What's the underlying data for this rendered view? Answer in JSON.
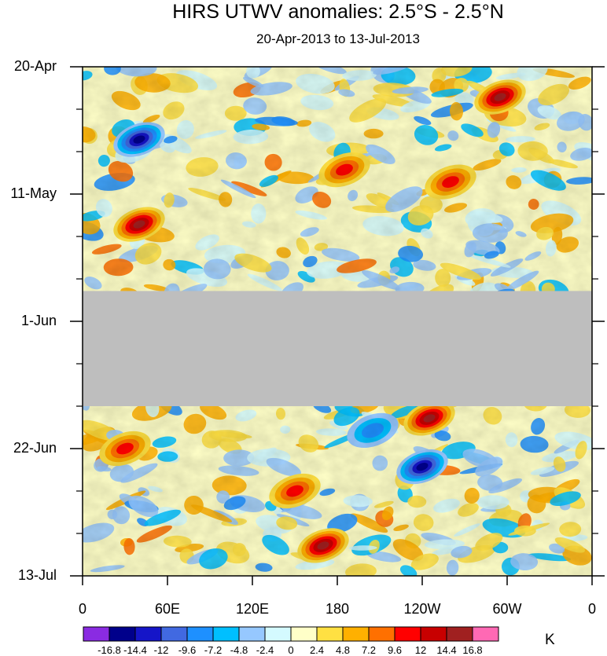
{
  "chart_data": {
    "type": "heatmap",
    "title": "HIRS UTWV anomalies: 2.5°S - 2.5°N",
    "subtitle": "20-Apr-2013 to 13-Jul-2013",
    "y_axis": {
      "labels": [
        "20-Apr",
        "11-May",
        "1-Jun",
        "22-Jun",
        "13-Jul"
      ],
      "range": [
        "20-Apr-2013",
        "13-Jul-2013"
      ],
      "direction": "time increases downward"
    },
    "x_axis": {
      "labels": [
        "0",
        "60E",
        "120E",
        "180",
        "120W",
        "60W",
        "0"
      ],
      "range_degrees_east": [
        0,
        360
      ]
    },
    "missing_data_period": [
      "27-May",
      "15-Jun"
    ],
    "missing_color": "#BEBEBE",
    "colorbar": {
      "unit": "K",
      "levels": [
        "-16.8",
        "-14.4",
        "-12",
        "-9.6",
        "-7.2",
        "-4.8",
        "-2.4",
        "0",
        "2.4",
        "4.8",
        "7.2",
        "9.6",
        "12",
        "14.4",
        "16.8"
      ],
      "colors": [
        "#8A2BE2",
        "#00008B",
        "#1515C8",
        "#4169E1",
        "#1E90FF",
        "#00BFFF",
        "#96C8FF",
        "#D4FAFF",
        "#FFFFC8",
        "#FFE042",
        "#FFB000",
        "#FF7000",
        "#FF0000",
        "#C80000",
        "#A02020",
        "#FF69B4"
      ]
    },
    "anomaly_features": [
      {
        "description": "strong negative",
        "lon_east": 40,
        "date": "2-May"
      },
      {
        "description": "strong positive",
        "lon_east": 40,
        "date": "16-May"
      },
      {
        "description": "positive",
        "lon_east": 185,
        "date": "7-May"
      },
      {
        "description": "strong positive",
        "lon_east": 295,
        "date": "25-Apr"
      },
      {
        "description": "positive",
        "lon_east": 260,
        "date": "9-May"
      },
      {
        "description": "positive",
        "lon_east": 150,
        "date": "29-Jun"
      },
      {
        "description": "strong positive",
        "lon_east": 170,
        "date": "8-Jul"
      },
      {
        "description": "strong positive",
        "lon_east": 245,
        "date": "17-Jun"
      },
      {
        "description": "strong negative",
        "lon_east": 240,
        "date": "25-Jun"
      },
      {
        "description": "negative",
        "lon_east": 205,
        "date": "19-Jun"
      },
      {
        "description": "positive",
        "lon_east": 30,
        "date": "22-Jun"
      }
    ]
  }
}
